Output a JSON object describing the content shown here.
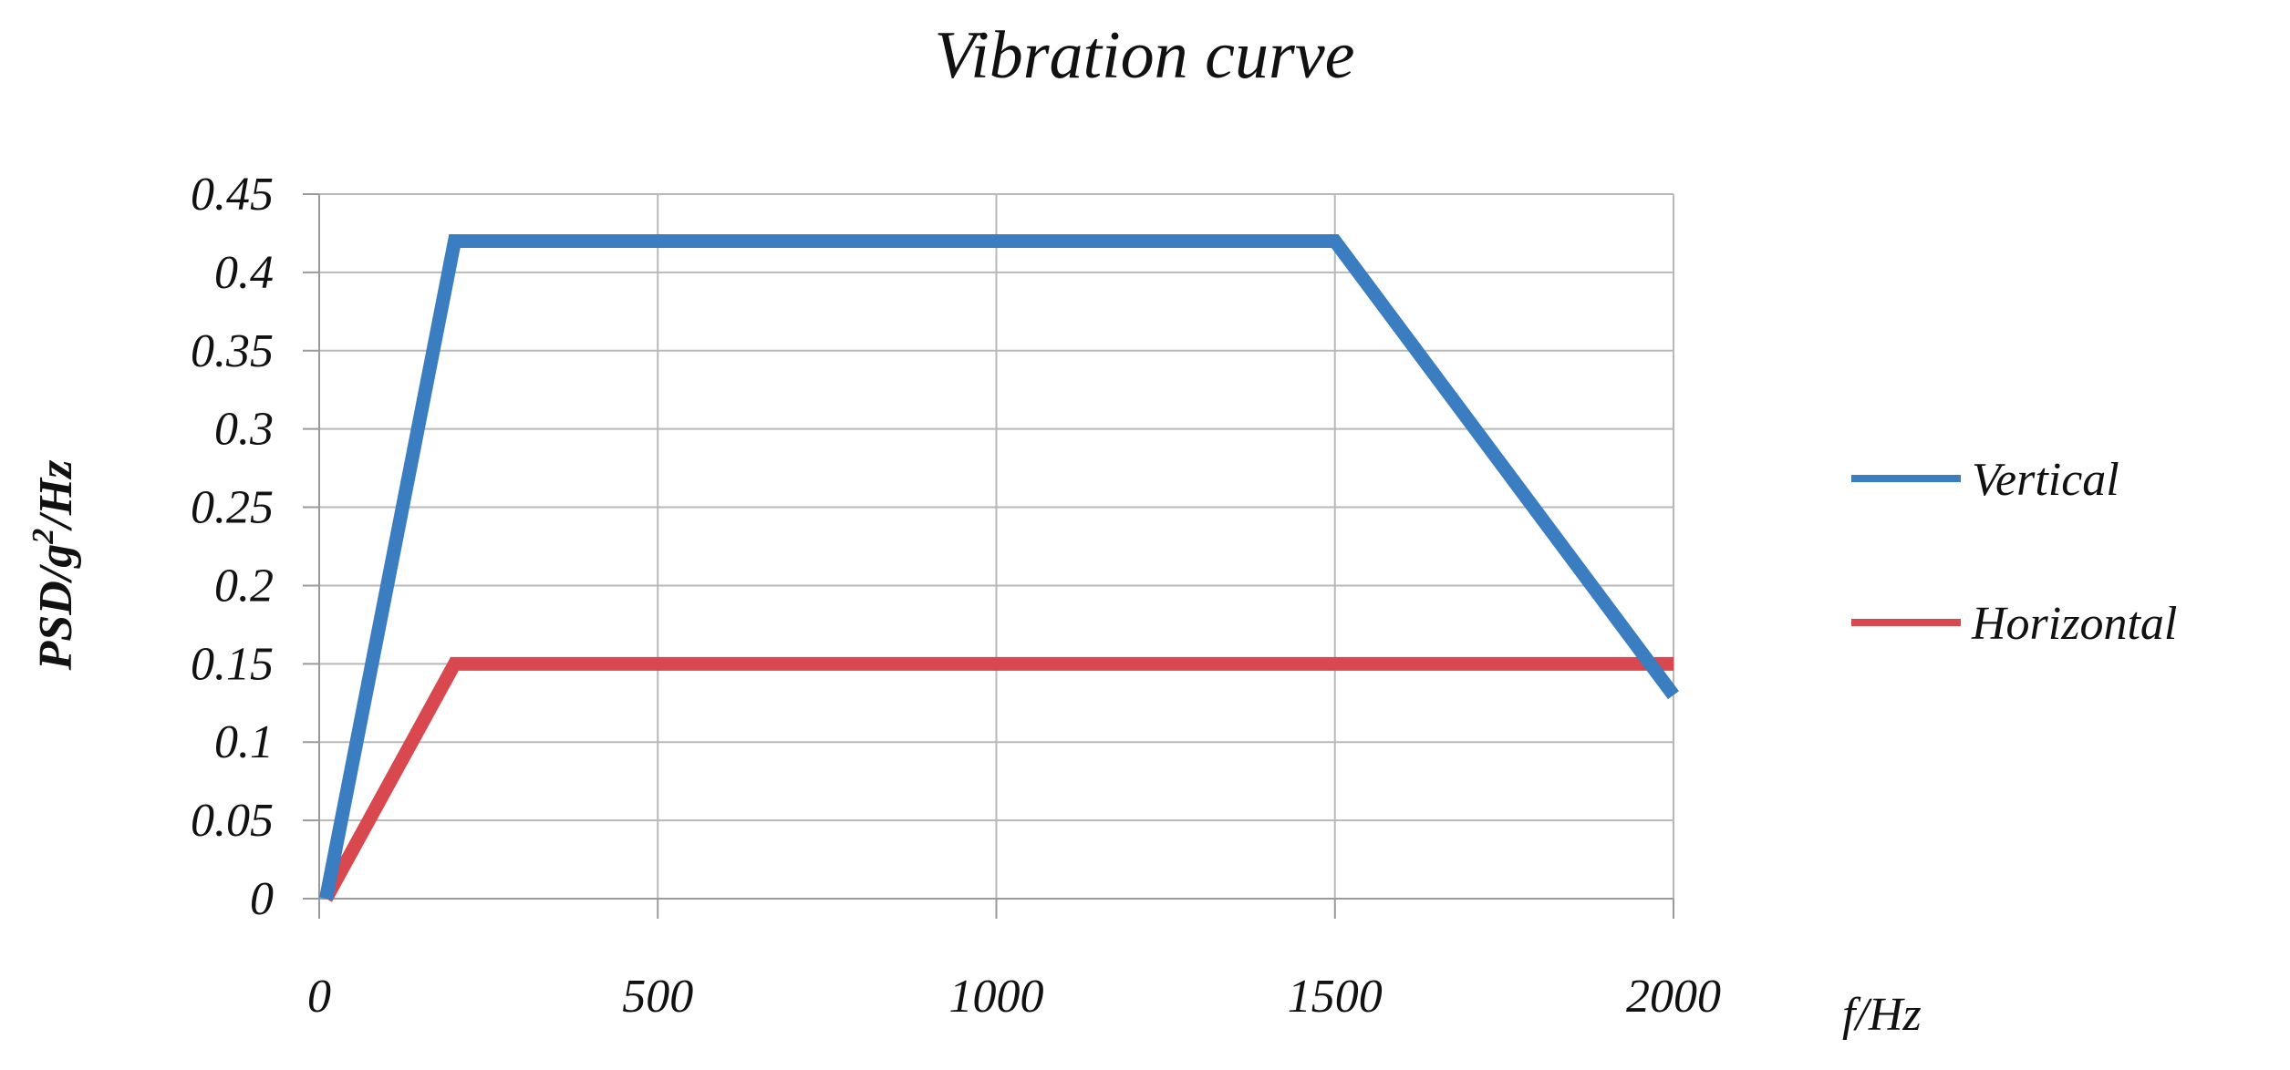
{
  "chart_data": {
    "type": "line",
    "title": "Vibration curve",
    "xlabel": "f/Hz",
    "ylabel": {
      "prefix": "PSD/g",
      "superscript": "2",
      "suffix": "/Hz"
    },
    "xlim": [
      0,
      2000
    ],
    "ylim": [
      0,
      0.45
    ],
    "xticks": [
      0,
      500,
      1000,
      1500,
      2000
    ],
    "xtick_labels": [
      "0",
      "500",
      "1000",
      "1500",
      "2000"
    ],
    "yticks": [
      0,
      0.05,
      0.1,
      0.15,
      0.2,
      0.25,
      0.3,
      0.35,
      0.4,
      0.45
    ],
    "ytick_labels": [
      "0",
      "0.05",
      "0.1",
      "0.15",
      "0.2",
      "0.25",
      "0.3",
      "0.35",
      "0.4",
      "0.45"
    ],
    "grid": true,
    "legend_position": "right",
    "series": [
      {
        "name": "Vertical",
        "color": "#3a7dc1",
        "x": [
          10,
          200,
          1500,
          2000
        ],
        "y": [
          0,
          0.42,
          0.42,
          0.13
        ]
      },
      {
        "name": "Horizontal",
        "color": "#d9484f",
        "x": [
          10,
          200,
          2000
        ],
        "y": [
          0,
          0.15,
          0.15
        ]
      }
    ]
  }
}
